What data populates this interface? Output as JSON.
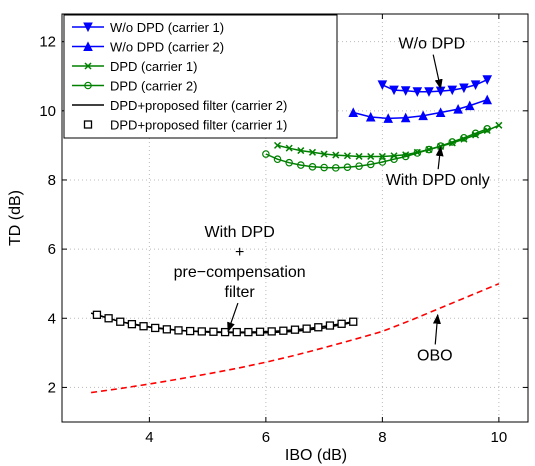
{
  "chart_data": {
    "type": "line",
    "xlabel": "IBO (dB)",
    "ylabel": "TD (dB)",
    "xlim": [
      2.5,
      10.5
    ],
    "ylim": [
      1.0,
      12.8
    ],
    "xticks": [
      4,
      6,
      8,
      10
    ],
    "yticks": [
      2,
      4,
      6,
      8,
      10,
      12
    ],
    "grid": true,
    "legend_position": "top-left",
    "series": [
      {
        "name": "W/o DPD (carrier 1)",
        "color": "#0000ff",
        "marker": "triangle-down",
        "x": [
          8.0,
          8.2,
          8.4,
          8.6,
          8.8,
          9.0,
          9.2,
          9.4,
          9.6,
          9.8
        ],
        "y": [
          10.75,
          10.6,
          10.58,
          10.55,
          10.55,
          10.57,
          10.6,
          10.66,
          10.75,
          10.9
        ]
      },
      {
        "name": "W/o DPD (carrier 2)",
        "color": "#0000ff",
        "marker": "triangle-up",
        "x": [
          7.5,
          7.8,
          8.1,
          8.4,
          8.7,
          9.0,
          9.3,
          9.5,
          9.8
        ],
        "y": [
          9.95,
          9.82,
          9.78,
          9.8,
          9.86,
          9.95,
          10.05,
          10.15,
          10.32
        ]
      },
      {
        "name": "DPD (carrier 1)",
        "color": "#008000",
        "marker": "x",
        "x": [
          6.2,
          6.4,
          6.6,
          6.8,
          7.0,
          7.2,
          7.4,
          7.6,
          7.8,
          8.0,
          8.2,
          8.4,
          8.6,
          8.8,
          9.0,
          9.2,
          9.4,
          9.6,
          9.8,
          10.0
        ],
        "y": [
          9.0,
          8.92,
          8.85,
          8.8,
          8.75,
          8.72,
          8.7,
          8.68,
          8.68,
          8.68,
          8.7,
          8.73,
          8.8,
          8.88,
          8.97,
          9.07,
          9.18,
          9.3,
          9.43,
          9.58
        ]
      },
      {
        "name": "DPD (carrier 2)",
        "color": "#008000",
        "marker": "circle",
        "x": [
          6.0,
          6.2,
          6.4,
          6.6,
          6.8,
          7.0,
          7.2,
          7.4,
          7.6,
          7.8,
          8.0,
          8.2,
          8.4,
          8.6,
          8.8,
          9.0,
          9.2,
          9.4,
          9.6,
          9.8
        ],
        "y": [
          8.75,
          8.6,
          8.5,
          8.43,
          8.38,
          8.36,
          8.35,
          8.37,
          8.4,
          8.45,
          8.52,
          8.6,
          8.68,
          8.78,
          8.88,
          8.98,
          9.1,
          9.22,
          9.35,
          9.48
        ]
      },
      {
        "name": "DPD+proposed filter (carrier 2)",
        "color": "#000000",
        "marker": "none",
        "x": [
          3.0,
          3.5,
          4.0,
          4.5,
          5.0,
          5.5,
          6.0,
          6.5,
          7.0,
          7.5
        ],
        "y": [
          4.15,
          3.9,
          3.75,
          3.65,
          3.6,
          3.58,
          3.58,
          3.62,
          3.72,
          3.88
        ]
      },
      {
        "name": "DPD+proposed filter (carrier 1)",
        "color": "#000000",
        "marker": "square",
        "x": [
          3.1,
          3.3,
          3.5,
          3.7,
          3.9,
          4.1,
          4.3,
          4.5,
          4.7,
          4.9,
          5.1,
          5.3,
          5.5,
          5.7,
          5.9,
          6.1,
          6.3,
          6.5,
          6.7,
          6.9,
          7.1,
          7.3,
          7.5
        ],
        "y": [
          4.1,
          4.0,
          3.9,
          3.83,
          3.77,
          3.72,
          3.68,
          3.65,
          3.63,
          3.62,
          3.61,
          3.6,
          3.6,
          3.6,
          3.61,
          3.62,
          3.64,
          3.67,
          3.7,
          3.74,
          3.79,
          3.84,
          3.9
        ]
      },
      {
        "name": "",
        "color": "#ff0000",
        "marker": "none",
        "dashed": true,
        "x": [
          3.0,
          3.5,
          4.0,
          4.5,
          5.0,
          5.5,
          6.0,
          6.5,
          7.0,
          7.5,
          8.0,
          8.5,
          9.0,
          9.5,
          10.0
        ],
        "y": [
          1.85,
          1.97,
          2.1,
          2.24,
          2.39,
          2.55,
          2.73,
          2.93,
          3.15,
          3.38,
          3.62,
          3.95,
          4.3,
          4.65,
          5.0
        ]
      }
    ],
    "annotations": [
      {
        "lines": [
          "W/o DPD"
        ],
        "text_x": 8.85,
        "text_y": 11.8,
        "arrow_to": [
          9.0,
          10.65
        ]
      },
      {
        "lines": [
          "With DPD only"
        ],
        "text_x": 8.95,
        "text_y": 7.85,
        "arrow_to": [
          9.0,
          8.95
        ]
      },
      {
        "lines": [
          "With DPD",
          "+",
          "pre−compensation",
          "filter"
        ],
        "text_x": 5.55,
        "text_y": 6.35,
        "arrow_to": [
          5.35,
          3.62
        ]
      },
      {
        "lines": [
          "OBO"
        ],
        "text_x": 8.9,
        "text_y": 2.78,
        "arrow_to": [
          8.95,
          4.1
        ]
      }
    ]
  }
}
